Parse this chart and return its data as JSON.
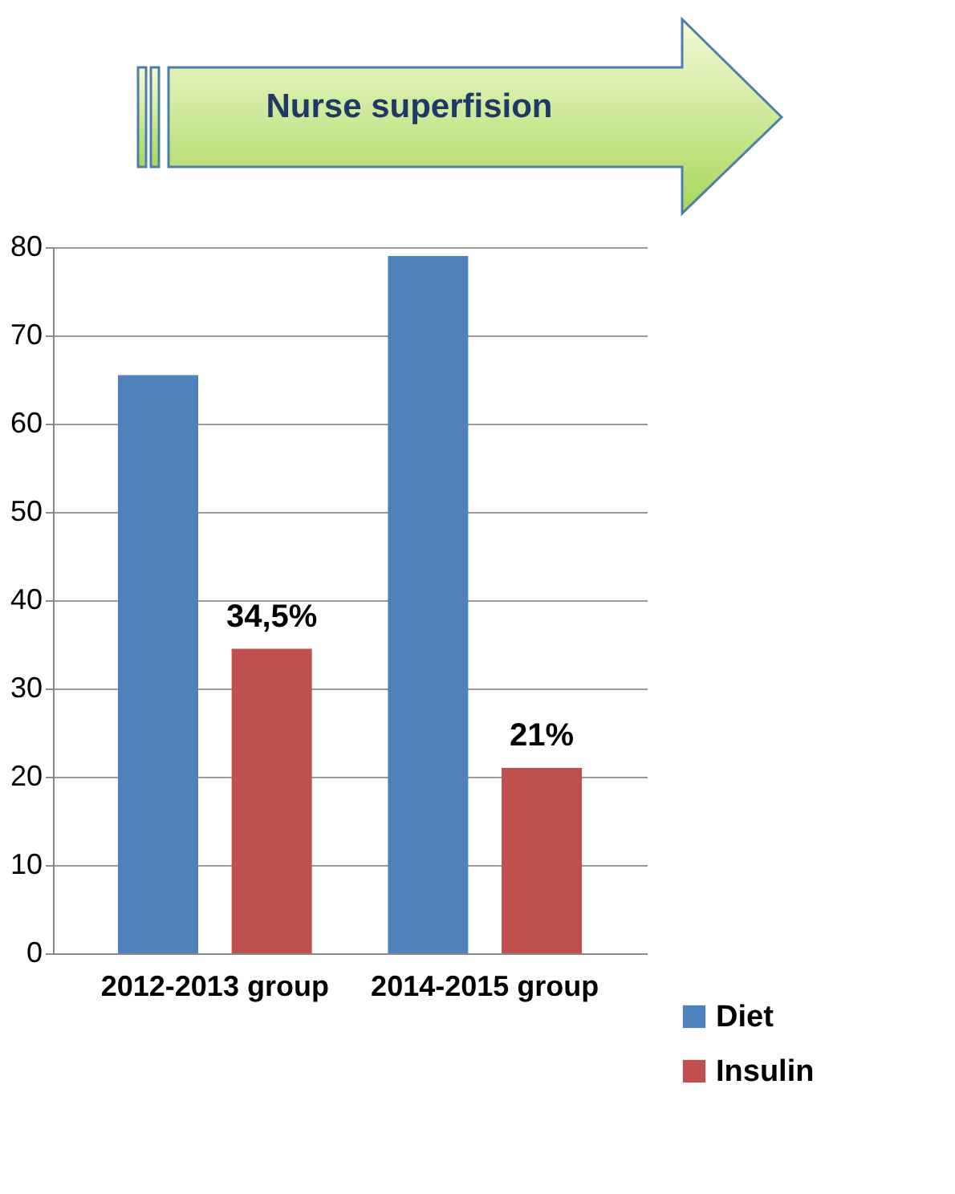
{
  "chart_data": {
    "type": "bar",
    "title": "Nurse superfision",
    "categories": [
      "2012-2013 group",
      "2014-2015 group"
    ],
    "series": [
      {
        "name": "Diet",
        "color": "#4f81bd",
        "values": [
          65.5,
          79
        ]
      },
      {
        "name": "Insulin",
        "color": "#c0504d",
        "values": [
          34.5,
          21
        ],
        "value_labels": [
          "34,5%",
          "21%"
        ]
      }
    ],
    "ylim": [
      0,
      80
    ],
    "yticks": [
      0,
      10,
      20,
      30,
      40,
      50,
      60,
      70,
      80
    ],
    "grid": "y",
    "legend": "bottom right"
  }
}
